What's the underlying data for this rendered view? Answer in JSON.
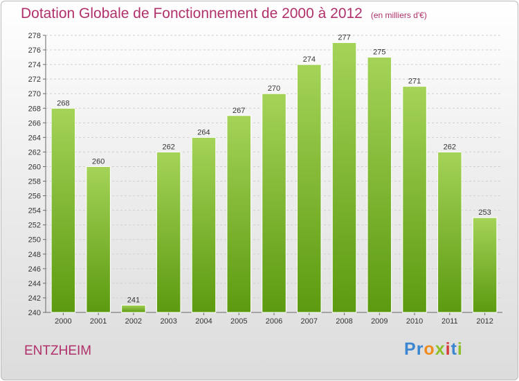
{
  "title": "Dotation Globale de Fonctionnement de 2000 à 2012",
  "unit": "(en milliers d'€)",
  "commune": "ENTZHEIM",
  "logo": {
    "letters": [
      "P",
      "r",
      "o",
      "x",
      "i",
      "t",
      "i"
    ],
    "colors": [
      "#3b86d0",
      "#3b86d0",
      "#f08c1e",
      "#8cbf2a",
      "#d83a3a",
      "#3b86d0",
      "#8cbf2a"
    ]
  },
  "colors": {
    "accent": "#b0306a",
    "bar_light": "#a4d358",
    "bar_dark": "#5c9a10",
    "grid": "#cfcfcf"
  },
  "chart_data": {
    "type": "bar",
    "categories": [
      "2000",
      "2001",
      "2002",
      "2003",
      "2004",
      "2005",
      "2006",
      "2007",
      "2008",
      "2009",
      "2010",
      "2011",
      "2012"
    ],
    "values": [
      268,
      260,
      241,
      262,
      264,
      267,
      270,
      274,
      277,
      275,
      271,
      262,
      253
    ],
    "yticks": [
      240,
      242,
      244,
      246,
      248,
      250,
      252,
      254,
      256,
      258,
      260,
      262,
      264,
      266,
      268,
      270,
      272,
      274,
      276,
      278
    ],
    "ylim": [
      240,
      278
    ],
    "grid": true,
    "data_labels": true
  }
}
